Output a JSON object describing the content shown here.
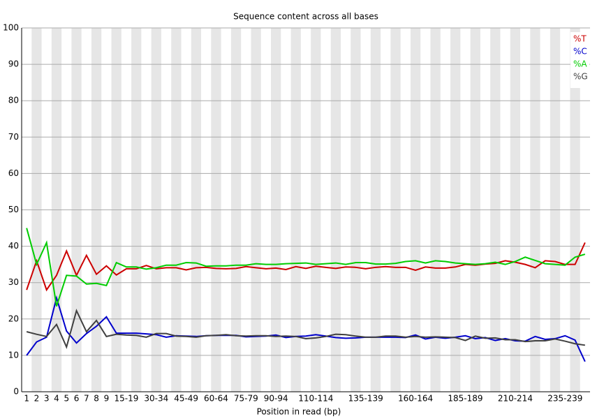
{
  "chart_data": {
    "type": "line",
    "title": "Sequence content across all bases",
    "x_label": "Position in read (bp)",
    "categories": [
      "1",
      "2",
      "3",
      "4",
      "5",
      "6",
      "7",
      "8",
      "9",
      null,
      "15-19",
      null,
      null,
      "30-34",
      null,
      null,
      "45-49",
      null,
      null,
      "60-64",
      null,
      null,
      "75-79",
      null,
      null,
      "90-94",
      null,
      null,
      null,
      "110-114",
      null,
      null,
      null,
      null,
      "135-139",
      null,
      null,
      null,
      null,
      "160-164",
      null,
      null,
      null,
      null,
      "185-189",
      null,
      null,
      null,
      null,
      "210-214",
      null,
      null,
      null,
      null,
      "235-239",
      null,
      null
    ],
    "series": [
      {
        "name": "%T",
        "color": "#cc0000",
        "values": [
          28,
          36,
          28,
          32,
          38.7,
          32,
          37.5,
          32.3,
          34.6,
          32.1,
          33.8,
          33.8,
          34.7,
          33.8,
          34.1,
          34.1,
          33.5,
          34.1,
          34.2,
          33.9,
          33.8,
          33.9,
          34.4,
          34.1,
          33.8,
          34,
          33.6,
          34.4,
          33.9,
          34.5,
          34.2,
          33.9,
          34.3,
          34.2,
          33.8,
          34.2,
          34.4,
          34.2,
          34.2,
          33.4,
          34.3,
          34,
          34,
          34.3,
          35,
          34.8,
          35.1,
          35.3,
          36,
          35.6,
          35,
          34.1,
          36,
          35.8,
          35,
          35,
          41
        ]
      },
      {
        "name": "%C",
        "color": "#0000cc",
        "values": [
          10,
          13.7,
          15,
          25.8,
          16.7,
          13.4,
          16,
          18,
          20.6,
          16.1,
          16.1,
          16.1,
          15.9,
          15.7,
          15,
          15.4,
          15.3,
          15.2,
          15.4,
          15.5,
          15.5,
          15.5,
          15.1,
          15.2,
          15.3,
          15.6,
          14.9,
          15.2,
          15.3,
          15.7,
          15.3,
          14.9,
          14.7,
          14.8,
          15,
          15,
          15,
          15,
          14.9,
          15.6,
          14.5,
          15,
          14.7,
          15,
          15.4,
          14.6,
          14.9,
          14.1,
          14.6,
          14,
          13.9,
          15.2,
          14.4,
          14.6,
          15.4,
          14.2,
          8.3
        ]
      },
      {
        "name": "%A",
        "color": "#00cc00",
        "values": [
          45,
          35,
          41,
          23.5,
          32,
          31.8,
          29.6,
          29.8,
          29.2,
          35.5,
          34.3,
          34.3,
          33.7,
          34.1,
          34.8,
          34.8,
          35.5,
          35.4,
          34.5,
          34.6,
          34.6,
          34.8,
          34.8,
          35.2,
          35,
          35,
          35.2,
          35.3,
          35.4,
          35,
          35.2,
          35.4,
          35,
          35.5,
          35.5,
          35.1,
          35.1,
          35.3,
          35.8,
          36,
          35.4,
          36,
          35.8,
          35.4,
          35.2,
          35,
          35.2,
          35.6,
          35,
          35.8,
          37,
          36.1,
          35.2,
          35,
          34.8,
          37,
          37.8
        ]
      },
      {
        "name": "%G",
        "color": "#404040",
        "values": [
          16.5,
          15.8,
          15.2,
          18.5,
          12.3,
          22.3,
          16.5,
          19.6,
          15.2,
          15.8,
          15.6,
          15.5,
          15,
          16,
          16,
          15.3,
          15.2,
          15,
          15.4,
          15.5,
          15.7,
          15.4,
          15.3,
          15.4,
          15.4,
          15.2,
          15.3,
          15.2,
          14.6,
          14.8,
          15.2,
          15.8,
          15.7,
          15.3,
          15,
          15,
          15.3,
          15.3,
          15,
          15.2,
          15,
          15.1,
          15,
          14.9,
          14.1,
          15.3,
          14.7,
          14.8,
          14.3,
          14.3,
          13.8,
          14,
          14,
          14.5,
          13.9,
          13.2,
          12.8
        ]
      }
    ],
    "ylim": [
      0,
      100
    ],
    "yticks": [
      0,
      10,
      20,
      30,
      40,
      50,
      60,
      70,
      80,
      90,
      100
    ],
    "grid": true,
    "legend": "top-right"
  }
}
